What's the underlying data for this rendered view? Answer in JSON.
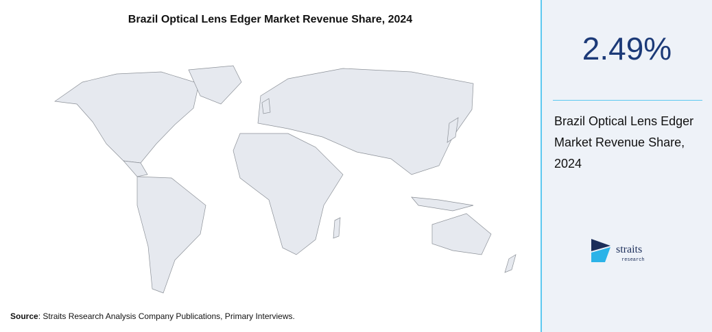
{
  "header": {
    "title": "Brazil Optical Lens Edger Market Revenue Share, 2024"
  },
  "stat": {
    "value": "2.49%",
    "description": "Brazil Optical Lens Edger Market Revenue Share, 2024"
  },
  "footer": {
    "source_label": "Source",
    "source_text": ": Straits Research Analysis Company Publications, Primary Interviews."
  },
  "logo": {
    "name": "straits",
    "tagline": "research"
  }
}
